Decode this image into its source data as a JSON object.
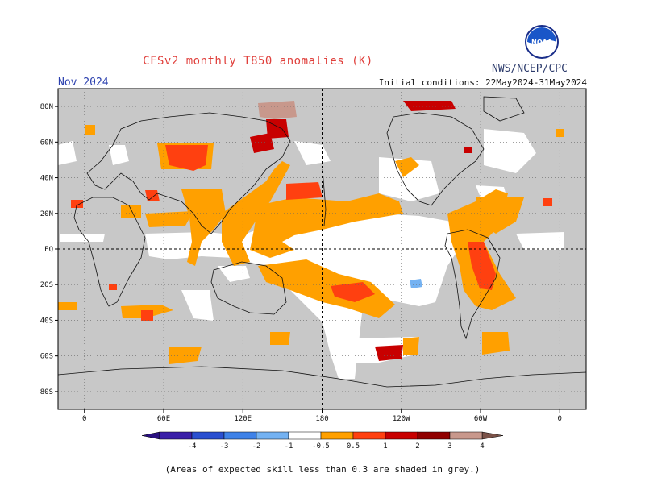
{
  "title": "CFSv2 monthly T850 anomalies (K)",
  "agency": "NWS/NCEP/CPC",
  "logo_text": "NOAA",
  "forecast_month": "Nov 2024",
  "initial_conditions": "Initial conditions: 22May2024-31May2024",
  "footnote": "(Areas of expected skill less than 0.3 are shaded in grey.)",
  "map": {
    "lat_labels": [
      "80N",
      "60N",
      "40N",
      "20N",
      "EQ",
      "20S",
      "40S",
      "60S",
      "80S"
    ],
    "lat_values": [
      80,
      60,
      40,
      20,
      0,
      -20,
      -40,
      -60,
      -80
    ],
    "lon_labels": [
      "0",
      "60E",
      "120E",
      "180",
      "120W",
      "60W",
      "0"
    ],
    "lon_values": [
      0,
      60,
      120,
      180,
      240,
      300,
      360
    ],
    "lon_range": [
      -20,
      380
    ],
    "lat_range": [
      -90,
      90
    ],
    "grey_color": "#c8c8c8"
  },
  "colorbar": {
    "labels": [
      "-4",
      "-3",
      "-2",
      "-1",
      "-0.5",
      "0.5",
      "1",
      "2",
      "3",
      "4"
    ],
    "bins": [
      {
        "color": "#3a1fa8"
      },
      {
        "color": "#2a4fd0"
      },
      {
        "color": "#3f82e8"
      },
      {
        "color": "#74b2f2"
      },
      {
        "color": "#ffffff"
      },
      {
        "color": "#ffa000"
      },
      {
        "color": "#ff4010"
      },
      {
        "color": "#c80000"
      },
      {
        "color": "#900000"
      },
      {
        "color": "#c8988c"
      }
    ],
    "low_end_color": "#2a1080",
    "high_end_color": "#7a5248"
  }
}
